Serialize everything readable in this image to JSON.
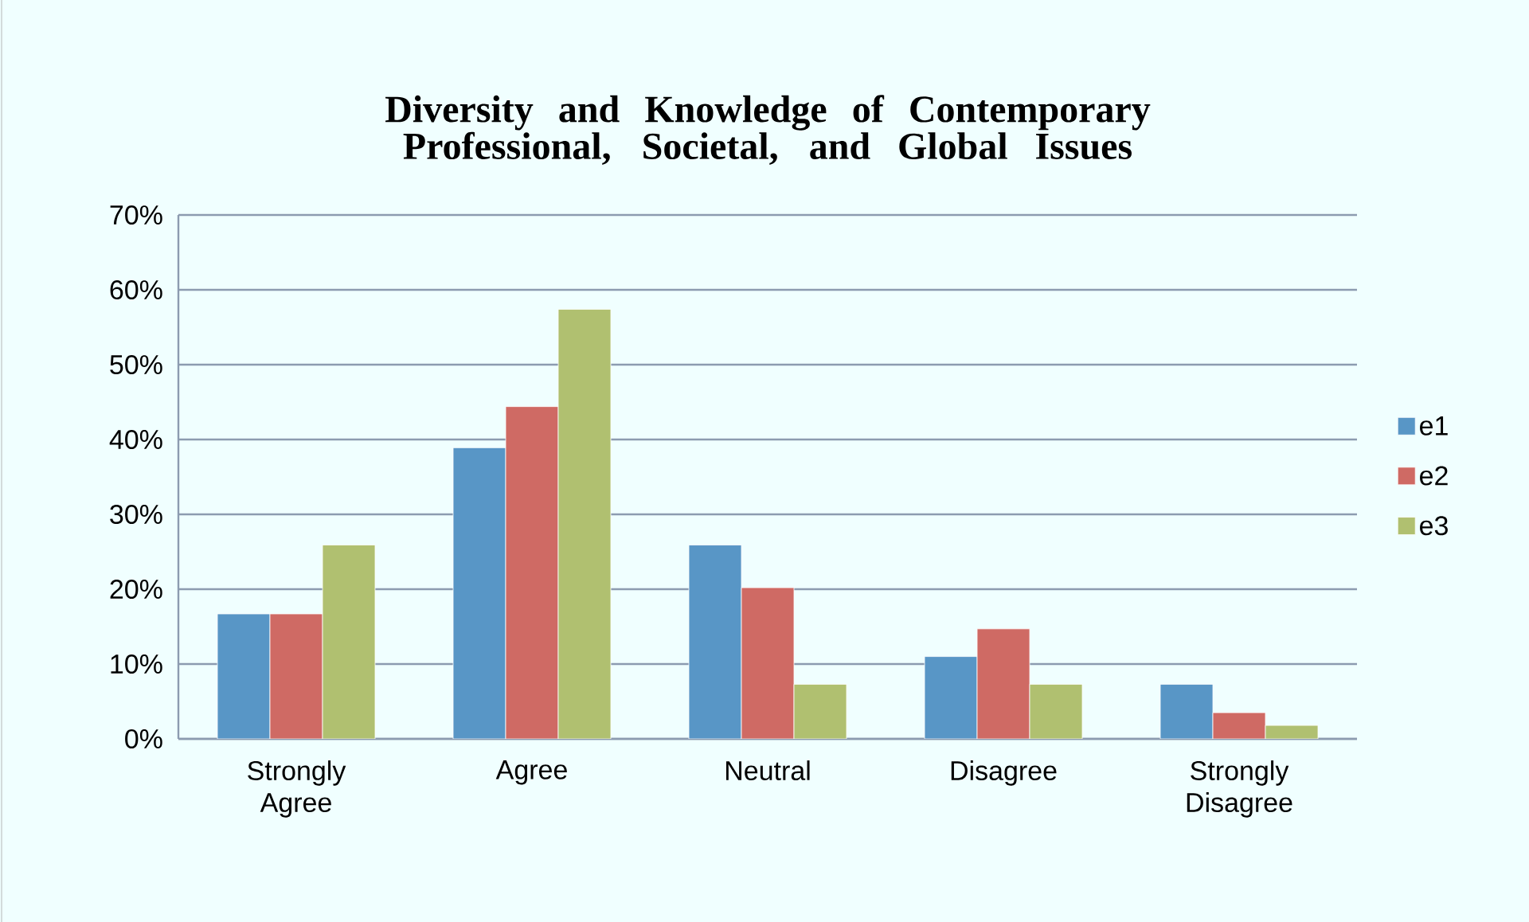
{
  "chart_data": {
    "type": "bar",
    "title": "Diversity and Knowledge of Contemporary Professional, Societal, and Global Issues",
    "categories": [
      "Strongly Agree",
      "Agree",
      "Neutral",
      "Disagree",
      "Strongly Disagree"
    ],
    "series": [
      {
        "name": "e1",
        "color": "#5896c6",
        "values": [
          16.7,
          38.9,
          25.9,
          11.0,
          7.3
        ]
      },
      {
        "name": "e2",
        "color": "#cf6a64",
        "values": [
          16.7,
          44.4,
          20.2,
          14.7,
          3.5
        ]
      },
      {
        "name": "e3",
        "color": "#b0c070",
        "values": [
          25.9,
          57.4,
          7.3,
          7.3,
          1.8
        ]
      }
    ],
    "ylim": [
      0,
      70
    ],
    "yticks": [
      {
        "value": 0,
        "label": "0%"
      },
      {
        "value": 10,
        "label": "10%"
      },
      {
        "value": 20,
        "label": "20%"
      },
      {
        "value": 30,
        "label": "30%"
      },
      {
        "value": 40,
        "label": "40%"
      },
      {
        "value": 50,
        "label": "50%"
      },
      {
        "value": 60,
        "label": "60%"
      },
      {
        "value": 70,
        "label": "70%"
      }
    ],
    "grid": "y",
    "legend": "right"
  }
}
